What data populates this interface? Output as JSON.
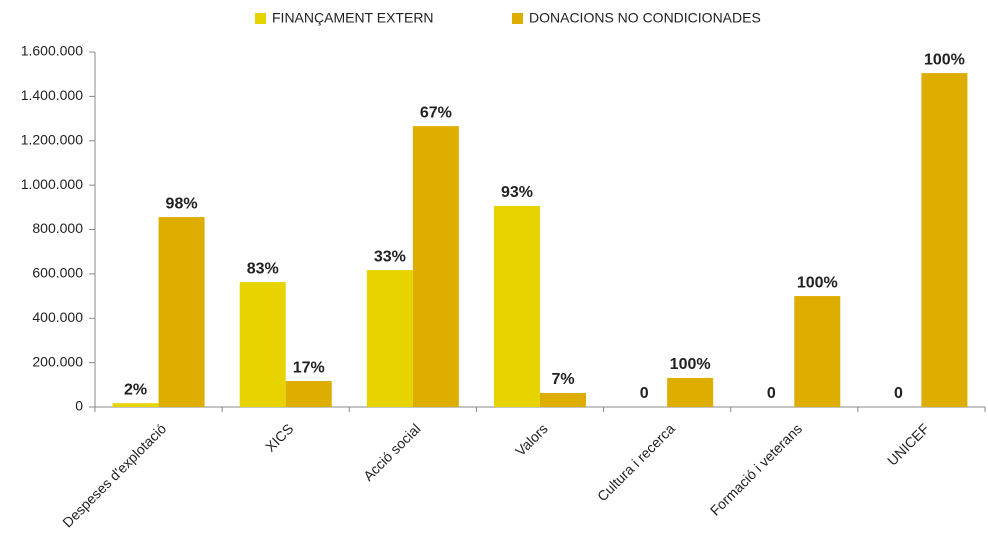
{
  "chart_data": {
    "type": "bar",
    "categories": [
      "Despeses d'explotació",
      "XICS",
      "Acció social",
      "Valors",
      "Cultura i recerca",
      "Formació i veterans",
      "UNICEF"
    ],
    "series": [
      {
        "name": "FINANÇAMENT EXTERN",
        "color": "#e6d300",
        "values": [
          17000,
          563000,
          617000,
          906000,
          0,
          0,
          0
        ],
        "value_labels": [
          "2%",
          "83%",
          "33%",
          "93%",
          "0",
          "0",
          "0"
        ]
      },
      {
        "name": "DONACIONS NO CONDICIONADES",
        "color": "#ddad00",
        "values": [
          856000,
          117000,
          1266000,
          63000,
          131000,
          500000,
          1505000
        ],
        "value_labels": [
          "98%",
          "17%",
          "67%",
          "7%",
          "100%",
          "100%",
          "100%"
        ]
      }
    ],
    "ylim": [
      0,
      1600000
    ],
    "yticks": [
      0,
      {
        "value": 200000,
        "label": "200.000"
      },
      {
        "value": 400000,
        "label": "400.000"
      },
      {
        "value": 600000,
        "label": "600.000"
      },
      {
        "value": 800000,
        "label": "800.000"
      },
      {
        "value": 1000000,
        "label": "1.000.000"
      },
      {
        "value": 1200000,
        "label": "1.200.000"
      },
      {
        "value": 1400000,
        "label": "1.400.000"
      },
      {
        "value": 1600000,
        "label": "1.600.000"
      }
    ],
    "legend": "top"
  }
}
